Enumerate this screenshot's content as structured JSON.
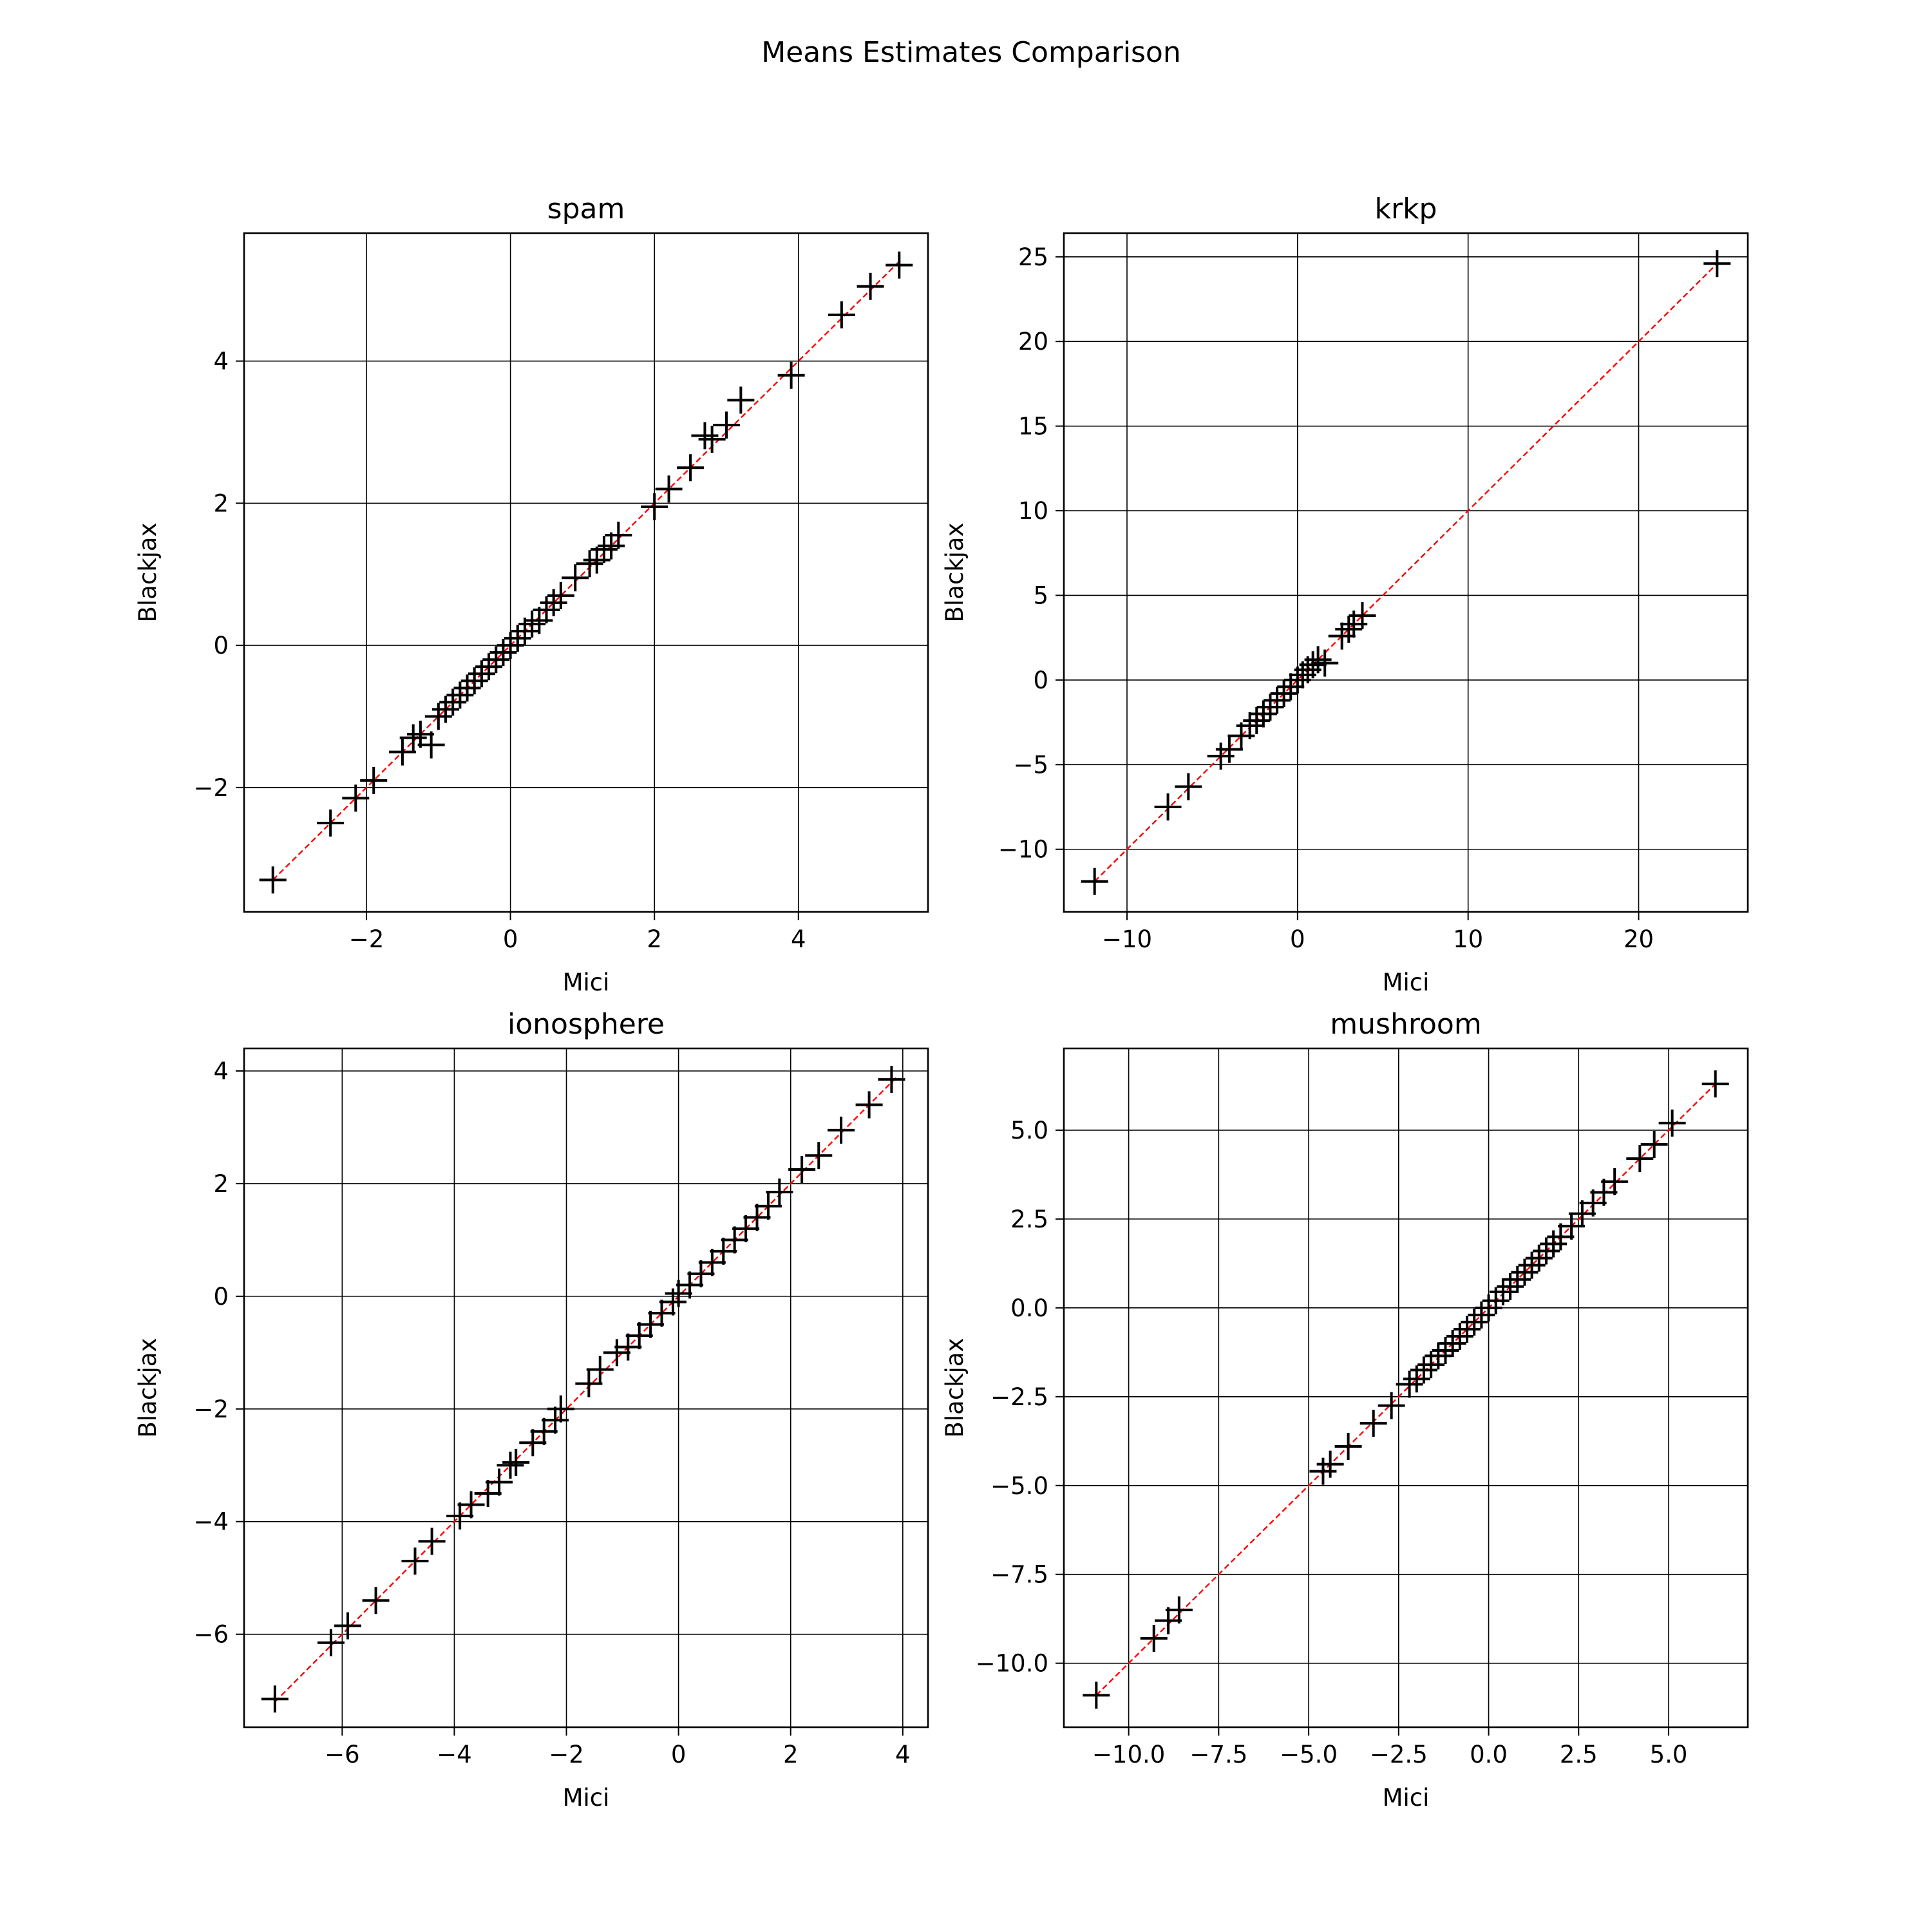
{
  "figure": {
    "title": "Means Estimates Comparison"
  },
  "style": {
    "marker_color": "#000000",
    "reference_line_color": "#ff0000",
    "grid_color": "#000000",
    "background": "#ffffff"
  },
  "chart_data": [
    {
      "type": "scatter",
      "title": "spam",
      "xlabel": "Mici",
      "ylabel": "Blackjax",
      "marker": "plus",
      "grid": true,
      "xlim": [
        -3.7,
        5.8
      ],
      "ylim": [
        -3.75,
        5.8
      ],
      "xticks": [
        -2,
        0,
        2,
        4
      ],
      "xtick_labels": [
        "−2",
        "0",
        "2",
        "4"
      ],
      "yticks": [
        -2,
        0,
        2,
        4
      ],
      "ytick_labels": [
        "−2",
        "0",
        "2",
        "4"
      ],
      "reference_line": {
        "style": "dashed",
        "from": [
          -3.3,
          -3.3
        ],
        "to": [
          5.4,
          5.4
        ]
      },
      "series": [
        {
          "x": [
            -3.3,
            -2.5,
            -2.15,
            -1.9,
            -1.5,
            -1.35,
            -1.25,
            -1.1,
            -1.0,
            -0.9,
            -0.8,
            -0.7,
            -0.6,
            -0.5,
            -0.4,
            -0.3,
            -0.2,
            -0.1,
            0.0,
            0.1,
            0.2,
            0.3,
            0.4,
            0.5,
            0.6,
            0.7,
            0.9,
            1.1,
            1.2,
            1.3,
            1.4,
            1.5,
            2.0,
            2.2,
            2.5,
            2.7,
            2.8,
            3.0,
            3.2,
            3.9,
            4.6,
            5.0,
            5.4
          ],
          "y": [
            -3.3,
            -2.5,
            -2.15,
            -1.9,
            -1.5,
            -1.3,
            -1.25,
            -1.4,
            -1.0,
            -0.9,
            -0.8,
            -0.7,
            -0.6,
            -0.5,
            -0.4,
            -0.3,
            -0.2,
            -0.1,
            0.0,
            0.1,
            0.2,
            0.3,
            0.35,
            0.5,
            0.6,
            0.7,
            0.95,
            1.15,
            1.2,
            1.35,
            1.4,
            1.55,
            1.95,
            2.2,
            2.5,
            2.95,
            2.9,
            3.1,
            3.45,
            3.8,
            4.65,
            5.05,
            5.35
          ]
        }
      ]
    },
    {
      "type": "scatter",
      "title": "krkp",
      "xlabel": "Mici",
      "ylabel": "Blackjax",
      "marker": "plus",
      "grid": true,
      "xlim": [
        -13.7,
        26.4
      ],
      "ylim": [
        -13.7,
        26.4
      ],
      "xticks": [
        -10,
        0,
        10,
        20
      ],
      "xtick_labels": [
        "−10",
        "0",
        "10",
        "20"
      ],
      "yticks": [
        -10,
        -5,
        0,
        5,
        10,
        15,
        20,
        25
      ],
      "ytick_labels": [
        "−10",
        "−5",
        "0",
        "5",
        "10",
        "15",
        "20",
        "25"
      ],
      "reference_line": {
        "style": "dashed",
        "from": [
          -11.9,
          -11.9
        ],
        "to": [
          24.6,
          24.6
        ]
      },
      "series": [
        {
          "x": [
            -11.9,
            -7.6,
            -6.4,
            -4.5,
            -4.0,
            -3.3,
            -2.8,
            -2.4,
            -2.0,
            -1.6,
            -1.2,
            -0.8,
            -0.4,
            0.0,
            0.3,
            0.6,
            0.9,
            1.2,
            1.6,
            2.6,
            3.0,
            3.3,
            3.8,
            24.6
          ],
          "y": [
            -11.9,
            -7.5,
            -6.3,
            -4.5,
            -4.1,
            -3.3,
            -2.7,
            -2.4,
            -2.0,
            -1.6,
            -1.2,
            -0.8,
            -0.4,
            0.0,
            0.3,
            0.6,
            0.9,
            1.2,
            1.0,
            2.6,
            3.0,
            3.3,
            3.8,
            24.6
          ]
        }
      ]
    },
    {
      "type": "scatter",
      "title": "ionosphere",
      "xlabel": "Mici",
      "ylabel": "Blackjax",
      "marker": "plus",
      "grid": true,
      "xlim": [
        -7.75,
        4.45
      ],
      "ylim": [
        -7.65,
        4.4
      ],
      "xticks": [
        -6,
        -4,
        -2,
        0,
        2,
        4
      ],
      "xtick_labels": [
        "−6",
        "−4",
        "−2",
        "0",
        "2",
        "4"
      ],
      "yticks": [
        -6,
        -4,
        -2,
        0,
        2,
        4
      ],
      "ytick_labels": [
        "−6",
        "−4",
        "−2",
        "0",
        "2",
        "4"
      ],
      "reference_line": {
        "style": "dashed",
        "from": [
          -7.2,
          -7.2
        ],
        "to": [
          3.9,
          3.9
        ]
      },
      "series": [
        {
          "x": [
            -7.2,
            -6.2,
            -5.9,
            -5.4,
            -4.7,
            -4.4,
            -3.9,
            -3.7,
            -3.4,
            -3.2,
            -3.0,
            -2.9,
            -2.6,
            -2.4,
            -2.2,
            -2.1,
            -1.6,
            -1.4,
            -1.1,
            -0.9,
            -0.7,
            -0.5,
            -0.3,
            -0.1,
            0.0,
            0.2,
            0.4,
            0.6,
            0.8,
            1.0,
            1.2,
            1.4,
            1.6,
            1.8,
            2.2,
            2.5,
            2.9,
            3.4,
            3.8
          ],
          "y": [
            -7.15,
            -6.15,
            -5.85,
            -5.4,
            -4.7,
            -4.35,
            -3.9,
            -3.7,
            -3.5,
            -3.3,
            -3.0,
            -2.95,
            -2.6,
            -2.4,
            -2.2,
            -2.0,
            -1.55,
            -1.3,
            -1.0,
            -0.9,
            -0.7,
            -0.5,
            -0.3,
            -0.1,
            0.05,
            0.2,
            0.4,
            0.6,
            0.8,
            1.0,
            1.2,
            1.4,
            1.6,
            1.85,
            2.25,
            2.5,
            2.95,
            3.4,
            3.85
          ]
        }
      ]
    },
    {
      "type": "scatter",
      "title": "mushroom",
      "xlabel": "Mici",
      "ylabel": "Blackjax",
      "marker": "plus",
      "grid": true,
      "xlim": [
        -11.8,
        7.2
      ],
      "ylim": [
        -11.8,
        7.3
      ],
      "xticks": [
        -10.0,
        -7.5,
        -5.0,
        -2.5,
        0.0,
        2.5,
        5.0
      ],
      "xtick_labels": [
        "−10.0",
        "−7.5",
        "−5.0",
        "−2.5",
        "0.0",
        "2.5",
        "5.0"
      ],
      "yticks": [
        -10.0,
        -7.5,
        -5.0,
        -2.5,
        0.0,
        2.5,
        5.0
      ],
      "ytick_labels": [
        "−10.0",
        "−7.5",
        "−5.0",
        "−2.5",
        "0.0",
        "2.5",
        "5.0"
      ],
      "reference_line": {
        "style": "dashed",
        "from": [
          -10.9,
          -10.9
        ],
        "to": [
          6.3,
          6.3
        ]
      },
      "series": [
        {
          "x": [
            -10.9,
            -9.3,
            -8.9,
            -8.6,
            -4.6,
            -4.4,
            -3.9,
            -3.2,
            -2.7,
            -2.2,
            -2.0,
            -1.8,
            -1.6,
            -1.4,
            -1.2,
            -1.0,
            -0.8,
            -0.6,
            -0.4,
            -0.2,
            0.0,
            0.2,
            0.4,
            0.6,
            0.8,
            1.0,
            1.2,
            1.4,
            1.6,
            1.8,
            2.0,
            2.3,
            2.6,
            2.9,
            3.2,
            3.5,
            4.2,
            4.6,
            5.1,
            6.3
          ],
          "y": [
            -10.9,
            -9.3,
            -8.8,
            -8.5,
            -4.6,
            -4.4,
            -3.9,
            -3.25,
            -2.75,
            -2.15,
            -2.0,
            -1.75,
            -1.6,
            -1.35,
            -1.2,
            -1.0,
            -0.8,
            -0.6,
            -0.4,
            -0.2,
            0.0,
            0.2,
            0.45,
            0.6,
            0.8,
            1.0,
            1.2,
            1.4,
            1.6,
            1.8,
            2.0,
            2.3,
            2.65,
            2.95,
            3.25,
            3.55,
            4.2,
            4.6,
            5.2,
            6.3
          ]
        }
      ]
    }
  ]
}
